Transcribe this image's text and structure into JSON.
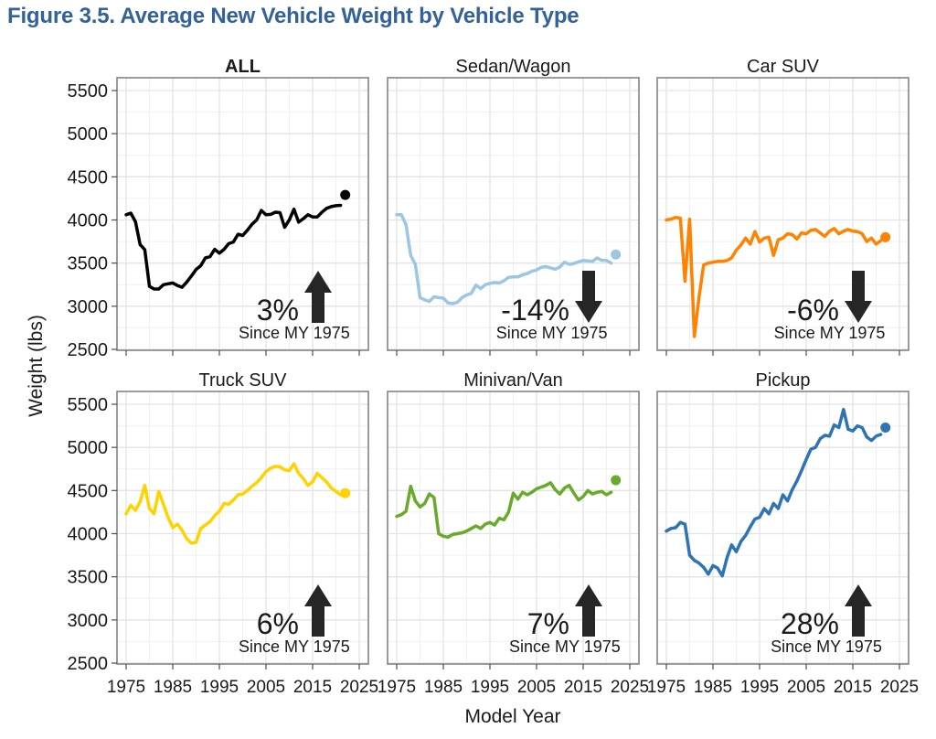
{
  "figure": {
    "title": "Figure 3.5. Average New Vehicle Weight by Vehicle Type",
    "title_color": "#33629B"
  },
  "chart_data": {
    "type": "line",
    "title": "Average New Vehicle Weight by Vehicle Type",
    "xlabel": "Model Year",
    "ylabel": "Weight (lbs)",
    "x_ticks": [
      1975,
      1985,
      1995,
      2005,
      2015,
      2025
    ],
    "y_ticks": [
      5500,
      5000,
      4500,
      4000,
      3500,
      3000,
      2500
    ],
    "xlim": [
      1973,
      2027
    ],
    "ylim": [
      2500,
      5650
    ],
    "grid": "on",
    "years_start": 1975,
    "line_end_year": 2021,
    "final_dot_year": 2022,
    "annotation_color": "#262626",
    "facets": [
      {
        "title": "ALL",
        "emphasis": true,
        "color": "#000000",
        "annotation": {
          "pct": "3%",
          "trend": "up",
          "since": "Since MY 1975"
        },
        "values": [
          4060,
          4080,
          3980,
          3715,
          3655,
          3230,
          3200,
          3200,
          3250,
          3260,
          3270,
          3240,
          3220,
          3280,
          3350,
          3425,
          3470,
          3560,
          3575,
          3660,
          3615,
          3660,
          3725,
          3745,
          3835,
          3820,
          3880,
          3950,
          4000,
          4110,
          4060,
          4065,
          4090,
          4085,
          3915,
          4000,
          4125,
          3975,
          4015,
          4060,
          4035,
          4035,
          4090,
          4135,
          4155,
          4165,
          4170
        ],
        "final_dot_value": 4290
      },
      {
        "title": "Sedan/Wagon",
        "emphasis": false,
        "color": "#9BC7E4",
        "annotation": {
          "pct": "-14%",
          "trend": "down",
          "since": "Since MY 1975"
        },
        "values": [
          4060,
          4060,
          3945,
          3590,
          3485,
          3100,
          3075,
          3055,
          3110,
          3100,
          3095,
          3040,
          3030,
          3045,
          3100,
          3130,
          3150,
          3245,
          3205,
          3250,
          3265,
          3275,
          3270,
          3295,
          3335,
          3340,
          3340,
          3365,
          3380,
          3405,
          3420,
          3450,
          3460,
          3445,
          3430,
          3455,
          3510,
          3485,
          3495,
          3515,
          3530,
          3525,
          3520,
          3560,
          3530,
          3530,
          3500
        ],
        "final_dot_value": 3600
      },
      {
        "title": "Car SUV",
        "emphasis": false,
        "color": "#FF8300",
        "annotation": {
          "pct": "-6%",
          "trend": "down",
          "since": "Since MY 1975"
        },
        "values": [
          4000,
          4010,
          4030,
          4020,
          3290,
          4010,
          2650,
          3100,
          3480,
          3500,
          3510,
          3520,
          3520,
          3530,
          3560,
          3650,
          3710,
          3790,
          3720,
          3865,
          3745,
          3790,
          3800,
          3590,
          3770,
          3790,
          3840,
          3830,
          3780,
          3850,
          3840,
          3880,
          3890,
          3850,
          3810,
          3870,
          3900,
          3840,
          3870,
          3890,
          3870,
          3865,
          3840,
          3750,
          3790,
          3720,
          3760
        ],
        "final_dot_value": 3800
      },
      {
        "title": "Truck SUV",
        "emphasis": false,
        "color": "#FFD300",
        "annotation": {
          "pct": "6%",
          "trend": "up",
          "since": "Since MY 1975"
        },
        "values": [
          4230,
          4330,
          4270,
          4370,
          4560,
          4290,
          4230,
          4490,
          4340,
          4190,
          4070,
          4110,
          4040,
          3940,
          3890,
          3900,
          4060,
          4100,
          4140,
          4210,
          4260,
          4350,
          4340,
          4390,
          4450,
          4460,
          4500,
          4550,
          4590,
          4650,
          4720,
          4760,
          4780,
          4775,
          4740,
          4730,
          4810,
          4700,
          4640,
          4560,
          4600,
          4700,
          4650,
          4600,
          4530,
          4490,
          4450
        ],
        "final_dot_value": 4470
      },
      {
        "title": "Minivan/Van",
        "emphasis": false,
        "color": "#6AAA2B",
        "annotation": {
          "pct": "7%",
          "trend": "up",
          "since": "Since MY 1975"
        },
        "values": [
          4200,
          4220,
          4260,
          4550,
          4380,
          4310,
          4350,
          4460,
          4420,
          4000,
          3970,
          3960,
          3990,
          4000,
          4010,
          4030,
          4060,
          4090,
          4060,
          4110,
          4130,
          4100,
          4180,
          4160,
          4250,
          4470,
          4400,
          4480,
          4450,
          4480,
          4520,
          4540,
          4560,
          4590,
          4510,
          4460,
          4530,
          4560,
          4470,
          4390,
          4430,
          4500,
          4460,
          4480,
          4490,
          4450,
          4480
        ],
        "final_dot_value": 4620
      },
      {
        "title": "Pickup",
        "emphasis": false,
        "color": "#2E74B5",
        "annotation": {
          "pct": "28%",
          "trend": "up",
          "since": "Since MY 1975"
        },
        "values": [
          4030,
          4060,
          4070,
          4130,
          4110,
          3750,
          3690,
          3660,
          3610,
          3530,
          3630,
          3600,
          3510,
          3720,
          3870,
          3790,
          3910,
          3980,
          4080,
          4170,
          4190,
          4290,
          4230,
          4350,
          4290,
          4450,
          4380,
          4510,
          4610,
          4730,
          4860,
          4980,
          5000,
          5100,
          5140,
          5130,
          5260,
          5230,
          5440,
          5210,
          5190,
          5250,
          5230,
          5120,
          5080,
          5130,
          5150
        ],
        "final_dot_value": 5230
      }
    ]
  }
}
